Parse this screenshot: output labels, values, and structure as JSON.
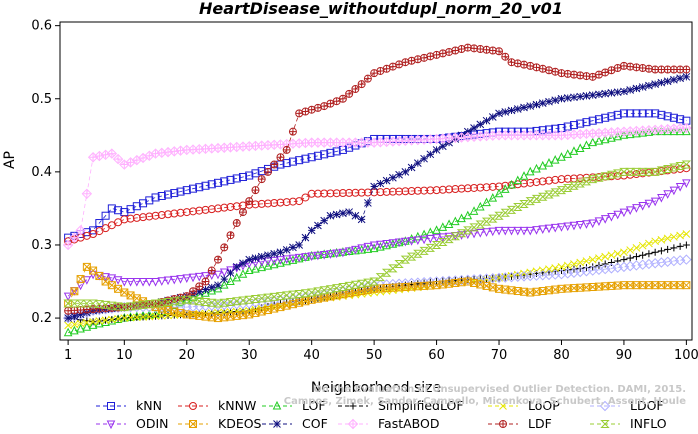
{
  "chart_data": {
    "type": "line",
    "title": "HeartDisease_withoutdupl_norm_20_v01",
    "xlabel": "Neighborhood size",
    "ylabel": "AP",
    "xlim": [
      1,
      100
    ],
    "ylim": [
      0.17,
      0.6
    ],
    "xticks": [
      1,
      10,
      20,
      30,
      40,
      50,
      60,
      70,
      80,
      90,
      100
    ],
    "yticks": [
      0.2,
      0.3,
      0.4,
      0.5,
      0.6
    ],
    "legend_placement": "bottom",
    "grid": false,
    "watermark": [
      "Campos, Zimek, Sander, Campello, Micenkova, Schubert, Assent, Houle",
      "On the Evaluation of Unsupervised Outlier Detection. DAMI, 2015."
    ],
    "series": [
      {
        "name": "kNN",
        "color": "#1f1fd8",
        "marker": "square",
        "dash": "4,3",
        "points": [
          [
            1,
            0.31
          ],
          [
            5,
            0.32
          ],
          [
            8,
            0.35
          ],
          [
            10,
            0.345
          ],
          [
            15,
            0.365
          ],
          [
            20,
            0.375
          ],
          [
            25,
            0.385
          ],
          [
            30,
            0.395
          ],
          [
            35,
            0.41
          ],
          [
            40,
            0.42
          ],
          [
            45,
            0.43
          ],
          [
            50,
            0.445
          ],
          [
            55,
            0.445
          ],
          [
            60,
            0.445
          ],
          [
            65,
            0.45
          ],
          [
            70,
            0.455
          ],
          [
            75,
            0.455
          ],
          [
            80,
            0.46
          ],
          [
            85,
            0.47
          ],
          [
            90,
            0.48
          ],
          [
            95,
            0.48
          ],
          [
            100,
            0.47
          ]
        ]
      },
      {
        "name": "kNNW",
        "color": "#d81f1f",
        "marker": "circle",
        "dash": "4,3",
        "points": [
          [
            1,
            0.305
          ],
          [
            5,
            0.315
          ],
          [
            10,
            0.335
          ],
          [
            15,
            0.34
          ],
          [
            20,
            0.345
          ],
          [
            25,
            0.35
          ],
          [
            30,
            0.355
          ],
          [
            35,
            0.358
          ],
          [
            38,
            0.36
          ],
          [
            40,
            0.37
          ],
          [
            50,
            0.372
          ],
          [
            60,
            0.375
          ],
          [
            70,
            0.38
          ],
          [
            80,
            0.39
          ],
          [
            90,
            0.395
          ],
          [
            100,
            0.405
          ]
        ]
      },
      {
        "name": "LOF",
        "color": "#22cc22",
        "marker": "triangle-up",
        "dash": "4,3",
        "points": [
          [
            1,
            0.18
          ],
          [
            5,
            0.19
          ],
          [
            10,
            0.2
          ],
          [
            15,
            0.205
          ],
          [
            20,
            0.225
          ],
          [
            25,
            0.24
          ],
          [
            30,
            0.265
          ],
          [
            35,
            0.275
          ],
          [
            40,
            0.285
          ],
          [
            45,
            0.29
          ],
          [
            50,
            0.295
          ],
          [
            55,
            0.305
          ],
          [
            60,
            0.32
          ],
          [
            65,
            0.34
          ],
          [
            70,
            0.37
          ],
          [
            75,
            0.4
          ],
          [
            80,
            0.42
          ],
          [
            85,
            0.44
          ],
          [
            90,
            0.45
          ],
          [
            95,
            0.455
          ],
          [
            100,
            0.455
          ]
        ]
      },
      {
        "name": "SimplifiedLOF",
        "color": "#000000",
        "marker": "plus",
        "dash": "4,3",
        "points": [
          [
            1,
            0.2
          ],
          [
            5,
            0.195
          ],
          [
            10,
            0.2
          ],
          [
            20,
            0.205
          ],
          [
            30,
            0.21
          ],
          [
            35,
            0.22
          ],
          [
            40,
            0.225
          ],
          [
            50,
            0.24
          ],
          [
            60,
            0.25
          ],
          [
            70,
            0.255
          ],
          [
            80,
            0.265
          ],
          [
            85,
            0.27
          ],
          [
            90,
            0.28
          ],
          [
            95,
            0.29
          ],
          [
            100,
            0.3
          ]
        ]
      },
      {
        "name": "LoOP",
        "color": "#e6e600",
        "marker": "cross",
        "dash": "4,3",
        "points": [
          [
            1,
            0.19
          ],
          [
            5,
            0.195
          ],
          [
            10,
            0.2
          ],
          [
            20,
            0.205
          ],
          [
            30,
            0.21
          ],
          [
            40,
            0.225
          ],
          [
            50,
            0.235
          ],
          [
            60,
            0.245
          ],
          [
            70,
            0.255
          ],
          [
            80,
            0.27
          ],
          [
            90,
            0.29
          ],
          [
            95,
            0.305
          ],
          [
            100,
            0.315
          ]
        ]
      },
      {
        "name": "LDOF",
        "color": "#b0b0ff",
        "marker": "diamond",
        "dash": "4,3",
        "points": [
          [
            1,
            0.2
          ],
          [
            5,
            0.21
          ],
          [
            10,
            0.215
          ],
          [
            20,
            0.215
          ],
          [
            30,
            0.22
          ],
          [
            40,
            0.23
          ],
          [
            50,
            0.245
          ],
          [
            60,
            0.25
          ],
          [
            70,
            0.255
          ],
          [
            80,
            0.26
          ],
          [
            90,
            0.27
          ],
          [
            100,
            0.28
          ]
        ]
      },
      {
        "name": "ODIN",
        "color": "#9933ee",
        "marker": "triangle-down",
        "dash": "4,3",
        "points": [
          [
            1,
            0.23
          ],
          [
            5,
            0.26
          ],
          [
            8,
            0.255
          ],
          [
            10,
            0.25
          ],
          [
            15,
            0.25
          ],
          [
            20,
            0.255
          ],
          [
            25,
            0.26
          ],
          [
            30,
            0.275
          ],
          [
            35,
            0.28
          ],
          [
            40,
            0.285
          ],
          [
            45,
            0.29
          ],
          [
            50,
            0.3
          ],
          [
            55,
            0.305
          ],
          [
            60,
            0.31
          ],
          [
            65,
            0.315
          ],
          [
            70,
            0.32
          ],
          [
            75,
            0.32
          ],
          [
            80,
            0.325
          ],
          [
            85,
            0.33
          ],
          [
            90,
            0.345
          ],
          [
            95,
            0.36
          ],
          [
            100,
            0.385
          ]
        ]
      },
      {
        "name": "KDEOS",
        "color": "#e6a000",
        "marker": "square-x",
        "dash": "4,3",
        "points": [
          [
            1,
            0.22
          ],
          [
            4,
            0.27
          ],
          [
            5,
            0.265
          ],
          [
            7,
            0.25
          ],
          [
            10,
            0.235
          ],
          [
            15,
            0.215
          ],
          [
            20,
            0.205
          ],
          [
            25,
            0.2
          ],
          [
            30,
            0.205
          ],
          [
            40,
            0.225
          ],
          [
            50,
            0.24
          ],
          [
            60,
            0.245
          ],
          [
            65,
            0.25
          ],
          [
            70,
            0.24
          ],
          [
            75,
            0.235
          ],
          [
            80,
            0.24
          ],
          [
            90,
            0.245
          ],
          [
            100,
            0.245
          ]
        ]
      },
      {
        "name": "COF",
        "color": "#101080",
        "marker": "star",
        "dash": "4,3",
        "points": [
          [
            1,
            0.2
          ],
          [
            5,
            0.21
          ],
          [
            10,
            0.215
          ],
          [
            15,
            0.22
          ],
          [
            20,
            0.23
          ],
          [
            25,
            0.245
          ],
          [
            28,
            0.27
          ],
          [
            30,
            0.28
          ],
          [
            35,
            0.29
          ],
          [
            38,
            0.3
          ],
          [
            40,
            0.32
          ],
          [
            43,
            0.34
          ],
          [
            46,
            0.345
          ],
          [
            48,
            0.335
          ],
          [
            50,
            0.38
          ],
          [
            55,
            0.4
          ],
          [
            60,
            0.43
          ],
          [
            65,
            0.455
          ],
          [
            70,
            0.48
          ],
          [
            75,
            0.49
          ],
          [
            80,
            0.5
          ],
          [
            85,
            0.505
          ],
          [
            90,
            0.51
          ],
          [
            95,
            0.52
          ],
          [
            100,
            0.53
          ]
        ]
      },
      {
        "name": "FastABOD",
        "color": "#ffb0ff",
        "marker": "diamond-plus",
        "dash": "4,3",
        "points": [
          [
            1,
            0.3
          ],
          [
            3,
            0.32
          ],
          [
            5,
            0.42
          ],
          [
            8,
            0.425
          ],
          [
            10,
            0.41
          ],
          [
            15,
            0.425
          ],
          [
            20,
            0.43
          ],
          [
            30,
            0.435
          ],
          [
            40,
            0.44
          ],
          [
            50,
            0.44
          ],
          [
            60,
            0.445
          ],
          [
            70,
            0.45
          ],
          [
            80,
            0.45
          ],
          [
            90,
            0.455
          ],
          [
            100,
            0.46
          ]
        ]
      },
      {
        "name": "LDF",
        "color": "#b02020",
        "marker": "circle-plus",
        "dash": "4,3",
        "points": [
          [
            1,
            0.21
          ],
          [
            10,
            0.215
          ],
          [
            15,
            0.22
          ],
          [
            20,
            0.23
          ],
          [
            23,
            0.25
          ],
          [
            25,
            0.28
          ],
          [
            28,
            0.33
          ],
          [
            32,
            0.39
          ],
          [
            36,
            0.43
          ],
          [
            38,
            0.48
          ],
          [
            42,
            0.49
          ],
          [
            45,
            0.5
          ],
          [
            48,
            0.52
          ],
          [
            50,
            0.535
          ],
          [
            55,
            0.55
          ],
          [
            60,
            0.56
          ],
          [
            65,
            0.57
          ],
          [
            70,
            0.565
          ],
          [
            72,
            0.55
          ],
          [
            75,
            0.545
          ],
          [
            80,
            0.535
          ],
          [
            85,
            0.53
          ],
          [
            90,
            0.545
          ],
          [
            95,
            0.54
          ],
          [
            100,
            0.54
          ]
        ]
      },
      {
        "name": "INFLO",
        "color": "#99cc33",
        "marker": "hourglass",
        "dash": "4,3",
        "points": [
          [
            1,
            0.22
          ],
          [
            5,
            0.22
          ],
          [
            10,
            0.215
          ],
          [
            15,
            0.22
          ],
          [
            20,
            0.225
          ],
          [
            25,
            0.22
          ],
          [
            30,
            0.225
          ],
          [
            40,
            0.235
          ],
          [
            50,
            0.25
          ],
          [
            55,
            0.28
          ],
          [
            60,
            0.3
          ],
          [
            65,
            0.32
          ],
          [
            70,
            0.34
          ],
          [
            75,
            0.36
          ],
          [
            80,
            0.375
          ],
          [
            85,
            0.39
          ],
          [
            90,
            0.4
          ],
          [
            95,
            0.4
          ],
          [
            100,
            0.41
          ]
        ]
      }
    ]
  }
}
